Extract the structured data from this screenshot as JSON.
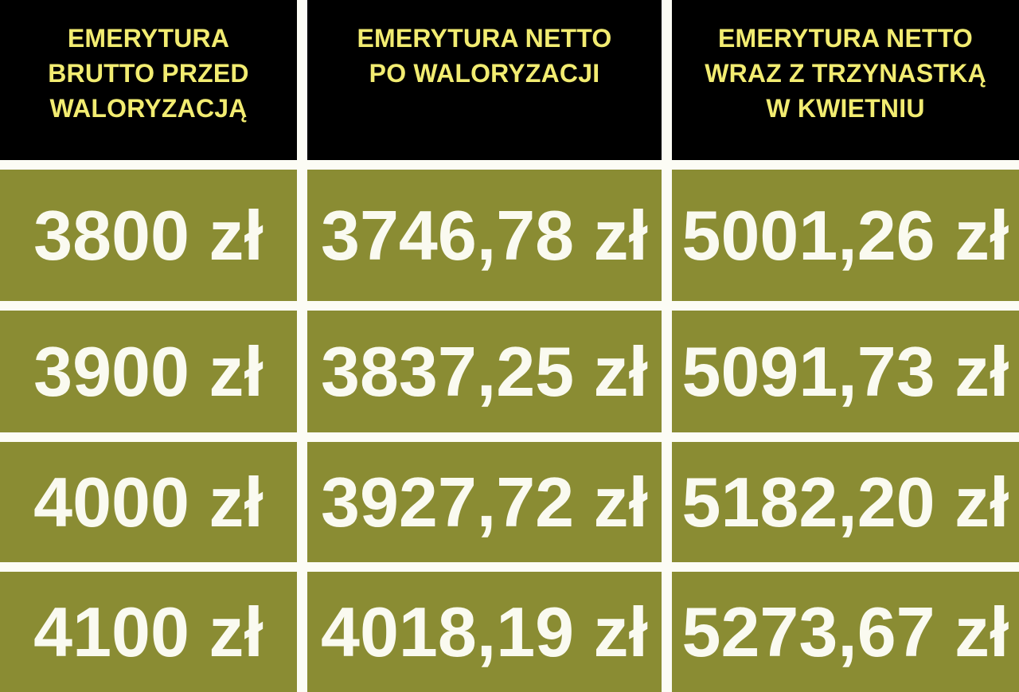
{
  "colors": {
    "header_bg": "#000000",
    "header_text": "#f2ec71",
    "cell_bg": "#8a8c33",
    "cell_text": "#fafaf0",
    "divider": "#fcfcf5"
  },
  "table": {
    "headers": [
      {
        "label": "EMERYTURA BRUTTO PRZED WALORYZACJĄ",
        "lines": [
          "EMERYTURA",
          "BRUTTO PRZED",
          "WALORYZACJĄ"
        ]
      },
      {
        "label": "EMERYTURA NETTO PO WALORYZACJI",
        "lines": [
          "EMERYTURA NETTO",
          "PO WALORYZACJI"
        ]
      },
      {
        "label": "EMERYTURA NETTO WRAZ Z TRZYNASTKĄ W KWIETNIU",
        "lines": [
          "EMERYTURA NETTO",
          "WRAZ Z TRZYNASTKĄ",
          "W KWIETNIU"
        ]
      }
    ],
    "rows": [
      [
        "3800 zł",
        "3746,78 zł",
        "5001,26 zł"
      ],
      [
        "3900 zł",
        "3837,25 zł",
        "5091,73 zł"
      ],
      [
        "4000 zł",
        "3927,72 zł",
        "5182,20 zł"
      ],
      [
        "4100 zł",
        "4018,19 zł",
        "5273,67 zł"
      ]
    ]
  },
  "chart_data": {
    "type": "table",
    "columns": [
      "EMERYTURA BRUTTO PRZED WALORYZACJĄ",
      "EMERYTURA NETTO PO WALORYZACJI",
      "EMERYTURA NETTO WRAZ Z TRZYNASTKĄ W KWIETNIU"
    ],
    "rows": [
      [
        "3800 zł",
        "3746,78 zł",
        "5001,26 zł"
      ],
      [
        "3900 zł",
        "3837,25 zł",
        "5091,73 zł"
      ],
      [
        "4000 zł",
        "3927,72 zł",
        "5182,20 zł"
      ],
      [
        "4100 zł",
        "4018,19 zł",
        "5273,67 zł"
      ]
    ]
  }
}
